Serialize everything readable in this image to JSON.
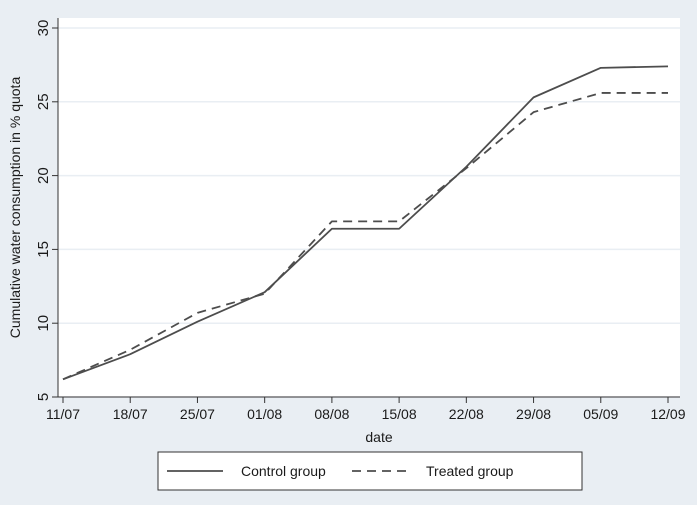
{
  "chart_data": {
    "type": "line",
    "title": "",
    "xlabel": "date",
    "ylabel": "Cumulative water consumption in % quota",
    "categories": [
      "11/07",
      "18/07",
      "25/07",
      "01/08",
      "08/08",
      "15/08",
      "22/08",
      "29/08",
      "05/09",
      "12/09"
    ],
    "ylim": [
      5,
      30
    ],
    "yticks": [
      5,
      10,
      15,
      20,
      25,
      30
    ],
    "grid": true,
    "legend_position": "bottom",
    "series": [
      {
        "name": "Control group",
        "style": "solid",
        "x": [
          "11/07",
          "18/07",
          "25/07",
          "01/08",
          "08/08",
          "15/08",
          "22/08",
          "29/08",
          "05/09",
          "12/09"
        ],
        "values": [
          6.2,
          7.9,
          10.1,
          12.1,
          16.4,
          16.4,
          20.6,
          25.3,
          27.3,
          27.4
        ]
      },
      {
        "name": "Treated group",
        "style": "dashed",
        "x": [
          "11/07",
          "18/07",
          "25/07",
          "01/08",
          "08/08",
          "15/08",
          "22/08",
          "29/08",
          "05/09",
          "12/09"
        ],
        "values": [
          6.2,
          8.2,
          10.7,
          12.0,
          16.9,
          16.9,
          20.5,
          24.3,
          25.6,
          25.6
        ]
      }
    ]
  },
  "colors": {
    "background": "#e9eef3",
    "plot_background": "#ffffff",
    "gridline": "#e9eef3",
    "series_line": "#4d4d4d",
    "axis": "#333333"
  }
}
